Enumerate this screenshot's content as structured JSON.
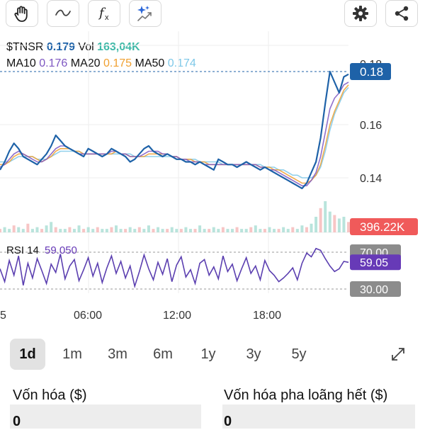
{
  "toolbar": {
    "buttons": [
      {
        "name": "hand-icon-button",
        "icon": "hand-icon"
      },
      {
        "name": "line-tool-button",
        "icon": "wave-line-icon"
      },
      {
        "name": "indicator-button",
        "icon": "fx-icon"
      },
      {
        "name": "ai-sparkle-button",
        "icon": "sparkle-chart-icon"
      },
      {
        "name": "settings-button",
        "icon": "gear-icon"
      },
      {
        "name": "share-button",
        "icon": "share-icon"
      }
    ]
  },
  "legend": {
    "ticker": "$TNSR",
    "price": "0.179",
    "vol_label": "Vol",
    "vol_value": "163,04K",
    "ma10_label": "MA10",
    "ma10_value": "0.176",
    "ma20_label": "MA20",
    "ma20_value": "0.175",
    "ma50_label": "MA50",
    "ma50_value": "0.174"
  },
  "colors": {
    "price": "#1e62a8",
    "volume_text": "#3fb9a8",
    "ma10": "#7e57c2",
    "ma20": "#f0a030",
    "ma50": "#7ec8e8",
    "rsi": "#5b3fb0",
    "current_price_badge": "#1e62a8",
    "volume_badge": "#f05a5a",
    "rsi_badge": "#673ab7",
    "level_badge": "#8c8c8c"
  },
  "chart_data": {
    "type": "line",
    "price_axis": {
      "ticks": [
        "0.16",
        "0.14"
      ],
      "partial_top_tick": "0.18"
    },
    "current_price_label": "0.18",
    "volume_label": "396.22K",
    "x_ticks": [
      "5",
      "06:00",
      "12:00",
      "18:00"
    ],
    "price_series": [
      0.143,
      0.146,
      0.15,
      0.153,
      0.151,
      0.148,
      0.147,
      0.146,
      0.145,
      0.147,
      0.149,
      0.152,
      0.156,
      0.154,
      0.152,
      0.151,
      0.15,
      0.149,
      0.148,
      0.151,
      0.15,
      0.149,
      0.148,
      0.149,
      0.151,
      0.15,
      0.149,
      0.148,
      0.146,
      0.147,
      0.149,
      0.151,
      0.152,
      0.15,
      0.149,
      0.148,
      0.149,
      0.148,
      0.147,
      0.147,
      0.146,
      0.146,
      0.145,
      0.146,
      0.145,
      0.144,
      0.143,
      0.147,
      0.146,
      0.145,
      0.145,
      0.144,
      0.145,
      0.146,
      0.145,
      0.144,
      0.143,
      0.144,
      0.143,
      0.142,
      0.141,
      0.14,
      0.139,
      0.138,
      0.137,
      0.136,
      0.138,
      0.142,
      0.146,
      0.155,
      0.168,
      0.18,
      0.176,
      0.172,
      0.178,
      0.179
    ],
    "ma10_series": [
      0.144,
      0.145,
      0.147,
      0.149,
      0.15,
      0.149,
      0.148,
      0.147,
      0.146,
      0.146,
      0.147,
      0.149,
      0.151,
      0.152,
      0.152,
      0.151,
      0.15,
      0.149,
      0.149,
      0.149,
      0.149,
      0.149,
      0.149,
      0.149,
      0.15,
      0.15,
      0.149,
      0.149,
      0.148,
      0.148,
      0.148,
      0.149,
      0.15,
      0.15,
      0.15,
      0.149,
      0.149,
      0.148,
      0.148,
      0.147,
      0.147,
      0.146,
      0.146,
      0.146,
      0.145,
      0.145,
      0.145,
      0.145,
      0.145,
      0.145,
      0.145,
      0.145,
      0.145,
      0.145,
      0.145,
      0.145,
      0.144,
      0.144,
      0.143,
      0.143,
      0.142,
      0.141,
      0.14,
      0.139,
      0.138,
      0.137,
      0.137,
      0.139,
      0.142,
      0.148,
      0.157,
      0.166,
      0.17,
      0.172,
      0.175,
      0.176
    ],
    "ma20_series": [
      0.145,
      0.145,
      0.146,
      0.148,
      0.149,
      0.149,
      0.148,
      0.148,
      0.147,
      0.146,
      0.147,
      0.148,
      0.15,
      0.151,
      0.151,
      0.151,
      0.15,
      0.15,
      0.149,
      0.149,
      0.149,
      0.149,
      0.149,
      0.149,
      0.149,
      0.15,
      0.149,
      0.149,
      0.148,
      0.148,
      0.148,
      0.148,
      0.149,
      0.149,
      0.149,
      0.149,
      0.149,
      0.148,
      0.148,
      0.147,
      0.147,
      0.147,
      0.146,
      0.146,
      0.146,
      0.145,
      0.145,
      0.145,
      0.145,
      0.145,
      0.145,
      0.145,
      0.145,
      0.145,
      0.145,
      0.145,
      0.144,
      0.144,
      0.144,
      0.143,
      0.143,
      0.142,
      0.141,
      0.14,
      0.139,
      0.138,
      0.138,
      0.139,
      0.141,
      0.145,
      0.152,
      0.16,
      0.165,
      0.169,
      0.173,
      0.175
    ],
    "ma50_series": [
      0.146,
      0.146,
      0.146,
      0.147,
      0.148,
      0.148,
      0.148,
      0.148,
      0.147,
      0.147,
      0.147,
      0.148,
      0.149,
      0.15,
      0.15,
      0.15,
      0.15,
      0.15,
      0.149,
      0.149,
      0.149,
      0.149,
      0.149,
      0.149,
      0.149,
      0.149,
      0.149,
      0.149,
      0.149,
      0.148,
      0.148,
      0.148,
      0.148,
      0.148,
      0.148,
      0.148,
      0.148,
      0.148,
      0.148,
      0.147,
      0.147,
      0.147,
      0.147,
      0.146,
      0.146,
      0.146,
      0.146,
      0.146,
      0.145,
      0.145,
      0.145,
      0.145,
      0.145,
      0.145,
      0.145,
      0.145,
      0.145,
      0.144,
      0.144,
      0.144,
      0.143,
      0.143,
      0.142,
      0.141,
      0.141,
      0.14,
      0.14,
      0.14,
      0.141,
      0.144,
      0.15,
      0.158,
      0.164,
      0.168,
      0.172,
      0.174
    ],
    "volume_series": [
      2,
      3,
      2,
      4,
      3,
      2,
      5,
      2,
      3,
      2,
      4,
      6,
      3,
      2,
      2,
      3,
      2,
      4,
      2,
      3,
      2,
      3,
      2,
      2,
      3,
      4,
      2,
      2,
      3,
      2,
      3,
      2,
      4,
      2,
      3,
      2,
      2,
      3,
      2,
      2,
      3,
      2,
      2,
      4,
      2,
      2,
      3,
      2,
      3,
      2,
      2,
      3,
      2,
      2,
      3,
      4,
      2,
      2,
      3,
      2,
      2,
      3,
      2,
      3,
      2,
      4,
      3,
      5,
      9,
      14,
      18,
      12,
      10,
      8,
      9,
      6
    ],
    "rsi": {
      "label": "RSI 14",
      "value": "59.050",
      "levels": [
        "70.00",
        "30.00"
      ],
      "current_badge": "59.05",
      "series": [
        52,
        38,
        61,
        45,
        66,
        34,
        58,
        42,
        63,
        50,
        36,
        57,
        48,
        68,
        41,
        55,
        62,
        39,
        51,
        64,
        44,
        58,
        37,
        53,
        66,
        47,
        60,
        42,
        55,
        33,
        49,
        67,
        52,
        40,
        59,
        46,
        63,
        38,
        56,
        65,
        43,
        51,
        36,
        58,
        62,
        45,
        54,
        41,
        66,
        49,
        57,
        39,
        52,
        64,
        47,
        55,
        40,
        61,
        50,
        45,
        38,
        42,
        47,
        53,
        40,
        58,
        69,
        65,
        74,
        72,
        63,
        55,
        49,
        52,
        60,
        59
      ]
    }
  },
  "timeframes": [
    {
      "label": "1d",
      "active": true
    },
    {
      "label": "1m",
      "active": false
    },
    {
      "label": "3m",
      "active": false
    },
    {
      "label": "6m",
      "active": false
    },
    {
      "label": "1y",
      "active": false
    },
    {
      "label": "3y",
      "active": false
    },
    {
      "label": "5y",
      "active": false
    }
  ],
  "expand_icon": "expand-diagonal-icon",
  "stats": [
    {
      "label": "Vốn hóa ($)",
      "value": "0"
    },
    {
      "label": "Vốn hóa pha loãng hết ($)",
      "value": "0"
    }
  ]
}
